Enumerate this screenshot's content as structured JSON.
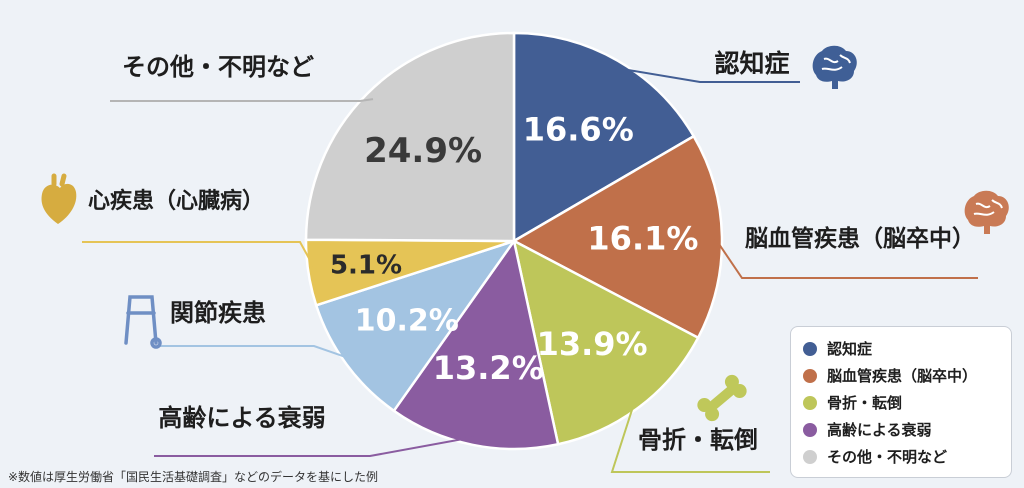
{
  "chart_data": {
    "type": "pie",
    "categories": [
      "認知症",
      "脳血管疾患（脳卒中）",
      "骨折・転倒",
      "高齢による衰弱",
      "関節疾患",
      "心疾患（心臓病）",
      "その他・不明など"
    ],
    "values": [
      16.6,
      16.1,
      13.9,
      13.2,
      10.2,
      5.1,
      24.9
    ],
    "value_labels": [
      "16.6%",
      "16.1%",
      "13.9%",
      "13.2%",
      "10.2%",
      "5.1%",
      "24.9%"
    ],
    "colors": [
      "#425e94",
      "#c0704a",
      "#bec65a",
      "#8a5ca0",
      "#a3c4e2",
      "#e5c456",
      "#cfcfcf"
    ],
    "label_colors": [
      "#ffffff",
      "#ffffff",
      "#ffffff",
      "#ffffff",
      "#ffffff",
      "#2b2b2b",
      "#3a3a3a"
    ],
    "callout_labels": [
      "認知症",
      "脳血管疾患（脳卒中）",
      "骨折・転倒",
      "高齢による衰弱",
      "関節疾患",
      "心疾患（心臓病）",
      "その他・不明など"
    ],
    "legend_placement": "bottom-right",
    "icons": [
      "brain-icon",
      "brain-icon",
      "bone-icon",
      "",
      "walker-icon",
      "heart-icon",
      ""
    ]
  },
  "legend": {
    "items": [
      "認知症",
      "脳血管疾患（脳卒中）",
      "骨折・転倒",
      "高齢による衰弱",
      "その他・不明など"
    ],
    "colors": [
      "#425e94",
      "#c0704a",
      "#bec65a",
      "#8a5ca0",
      "#cfcfcf"
    ]
  },
  "footnote": "※数値は厚生労働省「国民生活基礎調査」などのデータを基にした例"
}
